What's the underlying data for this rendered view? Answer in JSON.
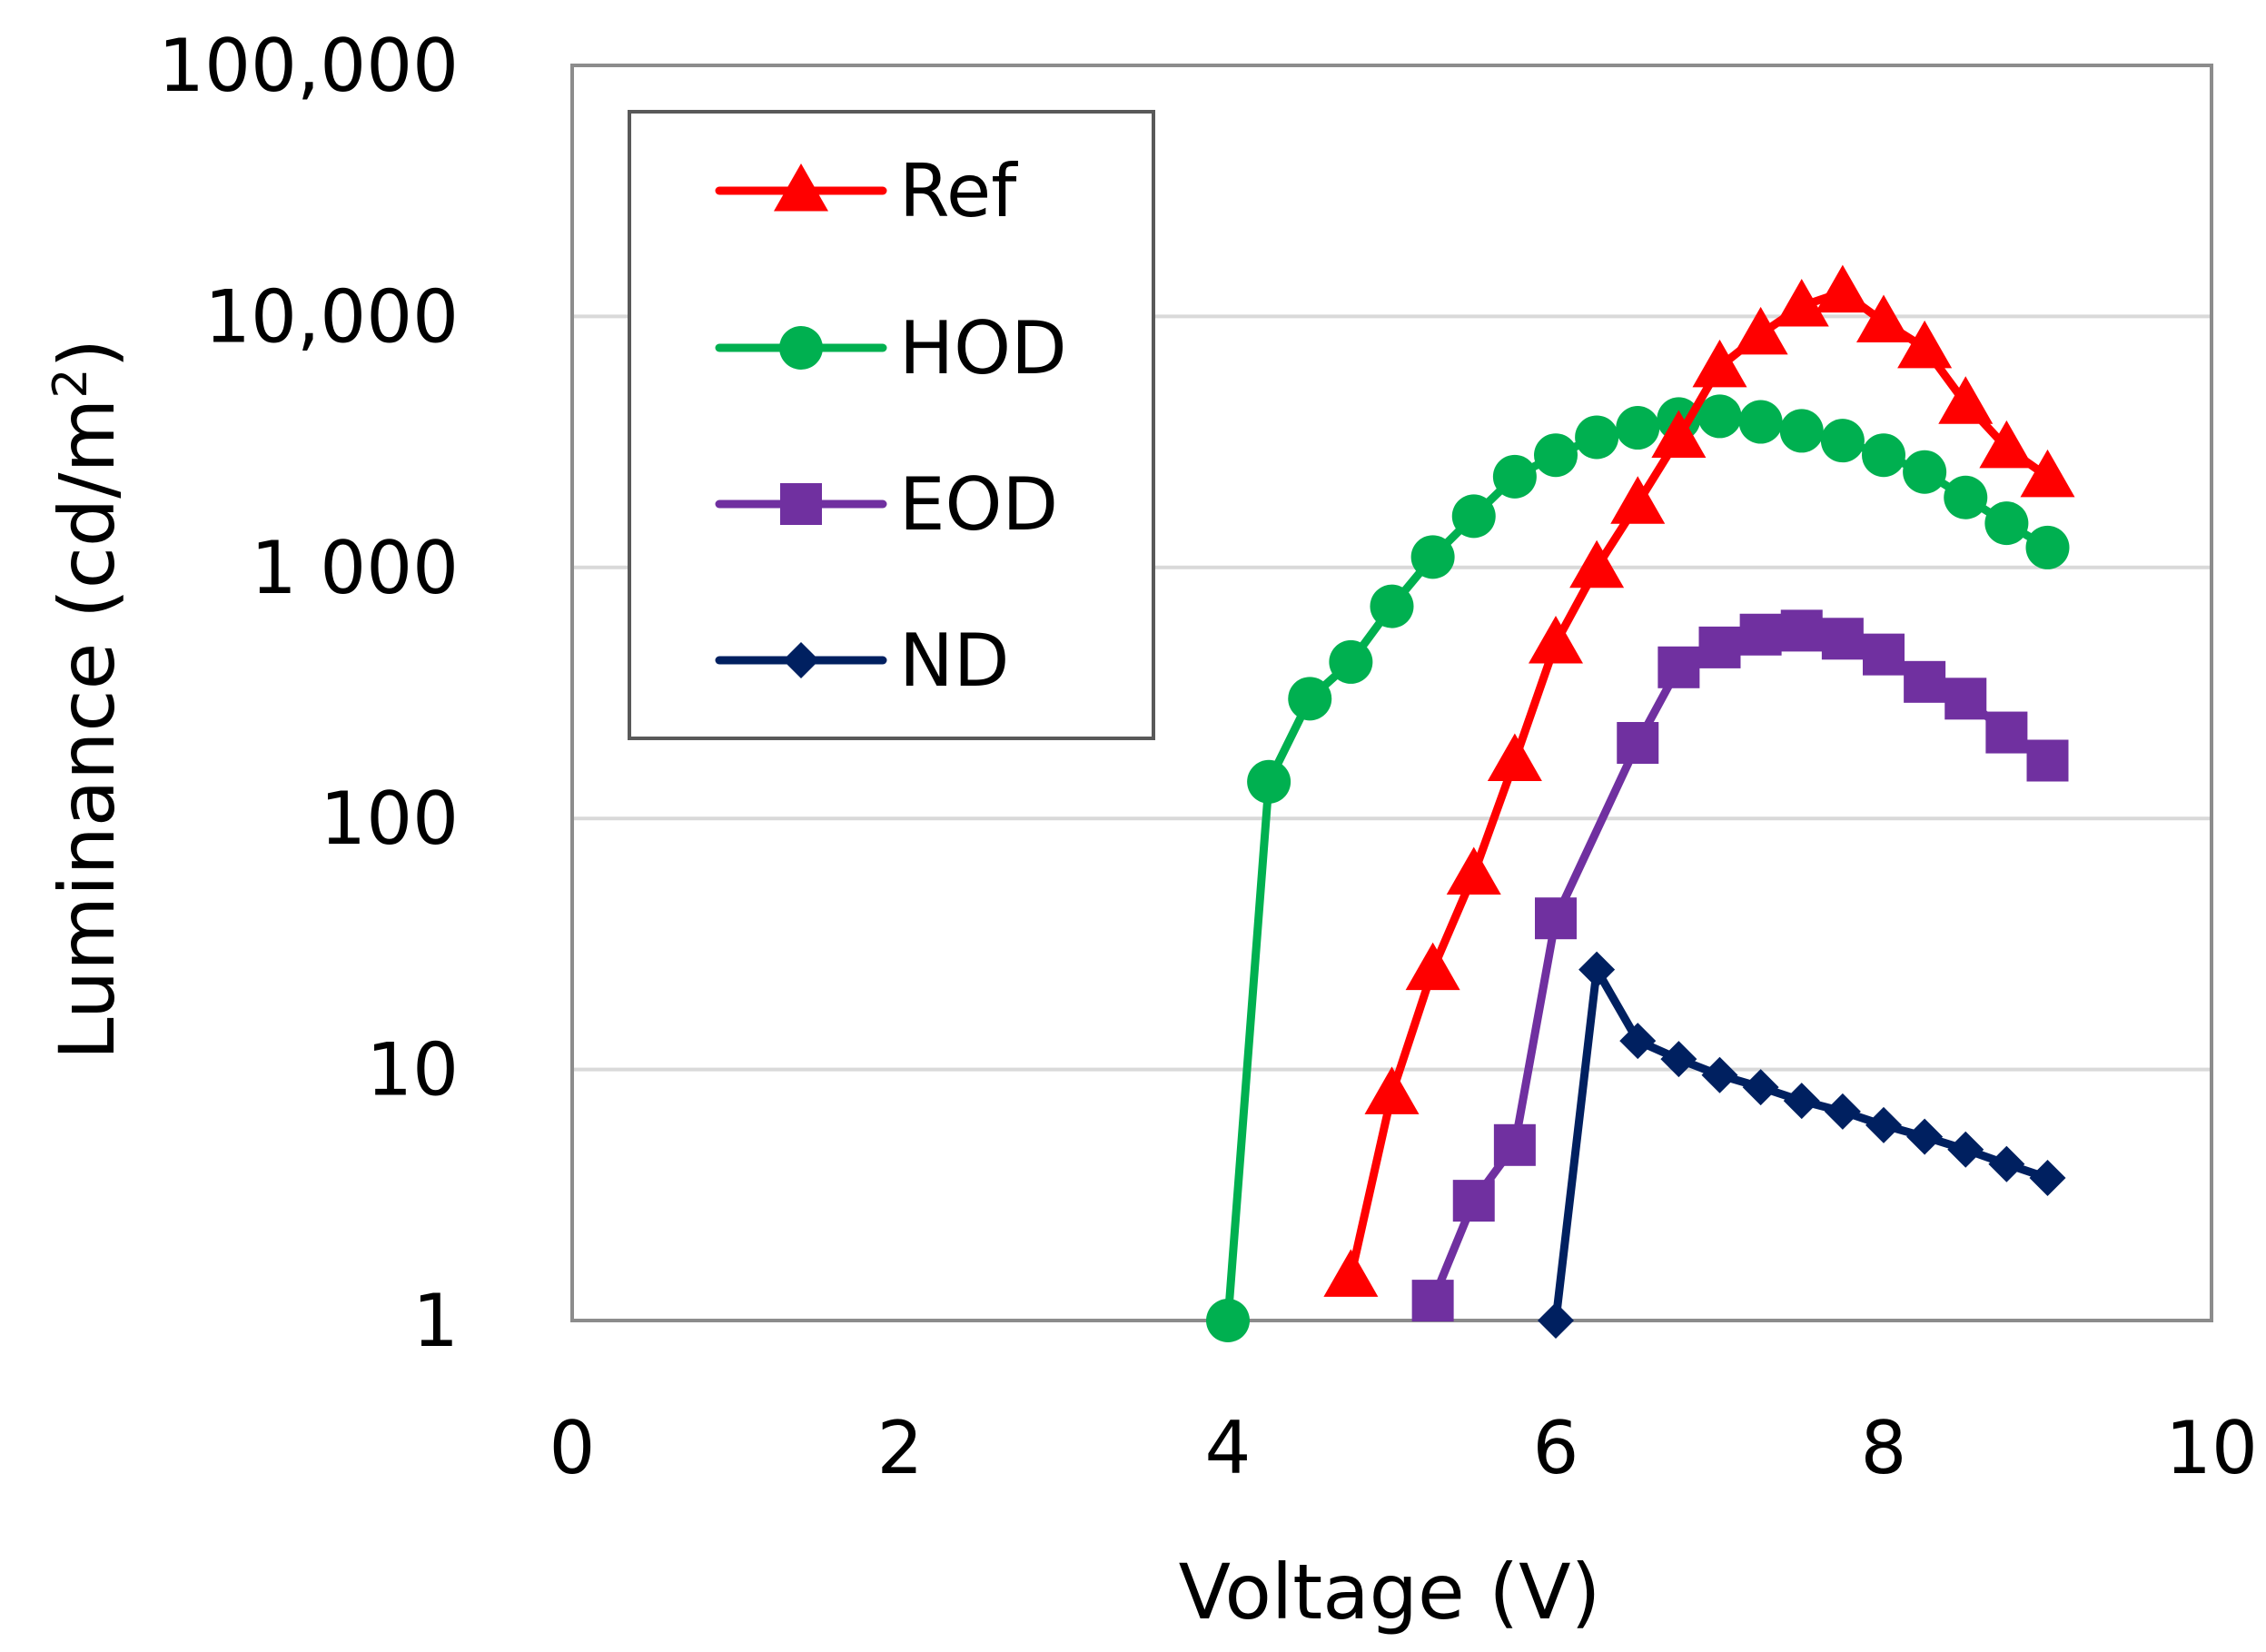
{
  "chart_data": {
    "type": "line",
    "title": "",
    "xlabel": "Voltage (V)",
    "ylabel": "Luminance (cd/m",
    "ylabel_sup": "2",
    "ylabel_end": ")",
    "xlim": [
      0,
      10
    ],
    "ylim": [
      1,
      100000
    ],
    "yscale": "log",
    "grid": "horizontal",
    "legend_position": "top-left",
    "x_ticks": [
      0,
      2,
      4,
      6,
      8,
      10
    ],
    "x_tick_labels": [
      "0",
      "2",
      "4",
      "6",
      "8",
      "10"
    ],
    "y_ticks": [
      1,
      10,
      100,
      1000,
      10000,
      100000
    ],
    "y_tick_labels": [
      "1",
      "10",
      "100",
      "1 000",
      "10,000",
      "100,000"
    ],
    "series": [
      {
        "name": "Ref",
        "color": "#ff0000",
        "marker": "triangle",
        "x": [
          4.75,
          5.0,
          5.25,
          5.5,
          5.75,
          6.0,
          6.25,
          6.5,
          6.75,
          7.0,
          7.25,
          7.5,
          7.75,
          8.0,
          8.25,
          8.5,
          8.75,
          9.0
        ],
        "y": [
          1.5,
          8,
          25,
          60,
          170,
          500,
          1000,
          1800,
          3300,
          6300,
          8500,
          11000,
          12500,
          9500,
          7500,
          4500,
          3000,
          2300
        ]
      },
      {
        "name": "HOD",
        "color": "#00b050",
        "marker": "circle",
        "x": [
          4.0,
          4.25,
          4.5,
          4.75,
          5.0,
          5.25,
          5.5,
          5.75,
          6.0,
          6.25,
          6.5,
          6.75,
          7.0,
          7.25,
          7.5,
          7.75,
          8.0,
          8.25,
          8.5,
          8.75,
          9.0
        ],
        "y": [
          1,
          140,
          300,
          420,
          700,
          1100,
          1600,
          2300,
          2800,
          3300,
          3600,
          3900,
          4000,
          3800,
          3500,
          3200,
          2800,
          2400,
          1900,
          1500,
          1200
        ]
      },
      {
        "name": "EOD",
        "color": "#7030a0",
        "marker": "square",
        "x": [
          5.25,
          5.5,
          5.75,
          6.0,
          6.5,
          6.75,
          7.0,
          7.25,
          7.5,
          7.75,
          8.0,
          8.25,
          8.5,
          8.75,
          9.0
        ],
        "y": [
          1.2,
          3,
          5,
          40,
          200,
          400,
          480,
          540,
          560,
          520,
          450,
          350,
          300,
          220,
          170
        ]
      },
      {
        "name": "ND",
        "color": "#002060",
        "marker": "diamond",
        "x": [
          6.0,
          6.25,
          6.5,
          6.75,
          7.0,
          7.25,
          7.5,
          7.75,
          8.0,
          8.25,
          8.5,
          8.75,
          9.0
        ],
        "y": [
          1,
          25,
          13,
          11,
          9.5,
          8.5,
          7.5,
          6.8,
          6,
          5.4,
          4.8,
          4.2,
          3.7
        ]
      }
    ]
  }
}
